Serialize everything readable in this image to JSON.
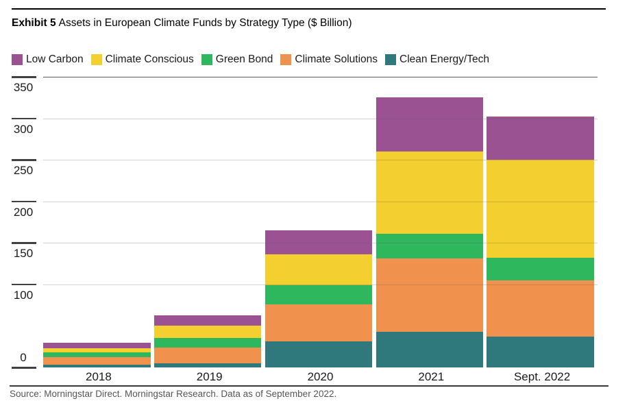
{
  "header": {
    "exhibit_label": "Exhibit 5",
    "title": "Assets in European Climate Funds by Strategy Type ($ Billion)"
  },
  "legend": [
    {
      "label": "Low Carbon",
      "color": "#9a5293"
    },
    {
      "label": "Climate Conscious",
      "color": "#f3d02f"
    },
    {
      "label": "Green Bond",
      "color": "#2eb75d"
    },
    {
      "label": "Climate Solutions",
      "color": "#f0914d"
    },
    {
      "label": "Clean Energy/Tech",
      "color": "#2f787c"
    }
  ],
  "chart_data": {
    "type": "bar",
    "stacked": true,
    "title": "Assets in European Climate Funds by Strategy Type ($ Billion)",
    "categories": [
      "2018",
      "2019",
      "2020",
      "2021",
      "Sept. 2022"
    ],
    "series": [
      {
        "name": "Clean Energy/Tech",
        "color": "#2f787c",
        "values": [
          3.5,
          5,
          31,
          43,
          37
        ]
      },
      {
        "name": "Climate Solutions",
        "color": "#f0914d",
        "values": [
          8.5,
          19,
          45,
          88,
          68
        ]
      },
      {
        "name": "Green Bond",
        "color": "#2eb75d",
        "values": [
          6,
          11.5,
          23,
          30,
          27
        ]
      },
      {
        "name": "Climate Conscious",
        "color": "#f3d02f",
        "values": [
          5.5,
          14.5,
          37,
          99,
          118
        ]
      },
      {
        "name": "Low Carbon",
        "color": "#9a5293",
        "values": [
          6,
          13,
          29,
          65,
          52
        ]
      }
    ],
    "totals": [
      29.5,
      63,
      165,
      325,
      302
    ],
    "xlabel": "",
    "ylabel": "",
    "ylim": [
      0,
      350
    ],
    "yticks": [
      0,
      100,
      150,
      200,
      250,
      300,
      350
    ],
    "grid": true,
    "gridlines_over_bars": true,
    "legend_position": "top",
    "legend_order": [
      "Low Carbon",
      "Climate Conscious",
      "Green Bond",
      "Climate Solutions",
      "Clean Energy/Tech"
    ]
  },
  "footer": {
    "source": "Source: Morningstar Direct. Morningstar Research. Data as of September 2022."
  }
}
